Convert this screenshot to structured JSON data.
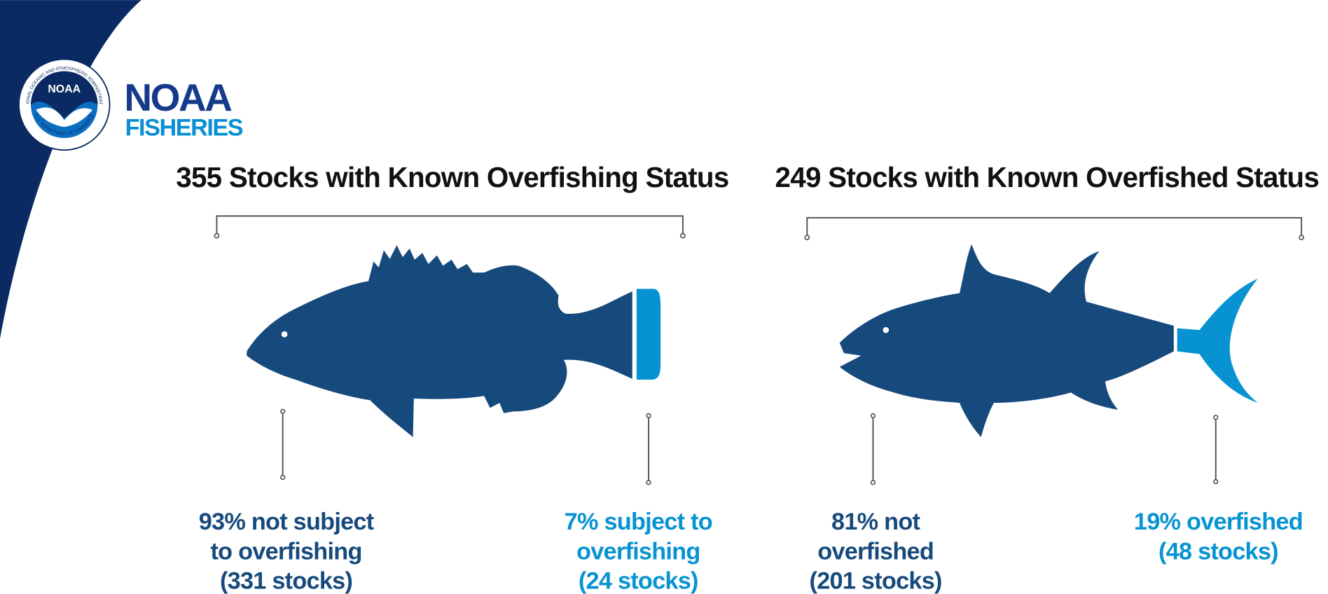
{
  "logo": {
    "emblem": "NOAA",
    "ring_top": "NATIONAL OCEANIC AND ATMOSPHERIC ADMINISTRATION",
    "ring_bottom": "U.S. DEPARTMENT OF COMMERCE",
    "name_line1": "NOAA",
    "name_line2": "FISHERIES"
  },
  "panels": [
    {
      "title": "355 Stocks with Known Overfishing Status",
      "labels": [
        {
          "lines": [
            "93% not subject",
            "to overfishing",
            "(331 stocks)"
          ]
        },
        {
          "lines": [
            "7% subject to",
            "overfishing",
            "(24 stocks)"
          ]
        }
      ]
    },
    {
      "title": "249 Stocks with Known Overfished Status",
      "labels": [
        {
          "lines": [
            "81% not",
            "overfished",
            "(201 stocks)"
          ]
        },
        {
          "lines": [
            "19% overfished",
            "(48 stocks)"
          ]
        }
      ]
    }
  ]
}
